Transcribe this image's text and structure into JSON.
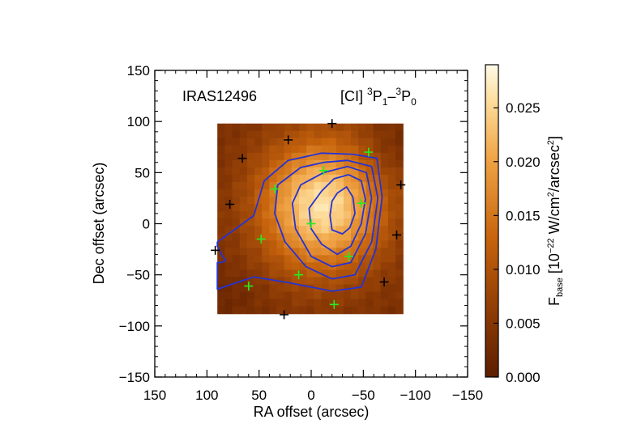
{
  "chart_data": {
    "type": "heatmap",
    "title": "",
    "object_label": "IRAS12496",
    "line_label": {
      "base": "[CI] ",
      "sup1": "3",
      "mid1": "P",
      "sub1": "1",
      "dash": "–",
      "sup2": "3",
      "mid2": "P",
      "sub2": "0"
    },
    "xlabel": "RA offset (arcsec)",
    "ylabel": "Dec offset (arcsec)",
    "xlim": [
      150,
      -150
    ],
    "ylim": [
      -150,
      150
    ],
    "x_ticks": [
      150,
      100,
      50,
      0,
      -50,
      -100,
      -150
    ],
    "x_tick_labels": [
      "150",
      "100",
      "50",
      "0",
      "−50",
      "−100",
      "−150"
    ],
    "y_ticks": [
      150,
      100,
      50,
      0,
      -50,
      -100,
      -150
    ],
    "y_tick_labels": [
      "150",
      "100",
      "50",
      "0",
      "−50",
      "−100",
      "−150"
    ],
    "image_extent": {
      "x": [
        90,
        -88
      ],
      "y": [
        -88,
        98
      ]
    },
    "image_grid": {
      "nx": 25,
      "ny": 26
    },
    "peak": {
      "x": -10,
      "y": 18
    },
    "colorbar": {
      "label_main": "F",
      "label_sub": "base",
      "label_rest_a": " [10",
      "label_sup_a": "−22",
      "label_rest_b": " W/cm",
      "label_sup_b": "2",
      "label_rest_c": "/arcsec",
      "label_sup_c": "2",
      "label_end": "]",
      "range": [
        0.0,
        0.029
      ],
      "ticks": [
        0.0,
        0.005,
        0.01,
        0.015,
        0.02,
        0.025
      ],
      "tick_labels": [
        "0.000",
        "0.005",
        "0.010",
        "0.015",
        "0.020",
        "0.025"
      ]
    },
    "contours": [
      {
        "level": 1,
        "points": [
          [
            -25,
            30
          ],
          [
            -34,
            36
          ],
          [
            -40,
            26
          ],
          [
            -42,
            10
          ],
          [
            -37,
            -4
          ],
          [
            -30,
            -10
          ],
          [
            -20,
            -6
          ],
          [
            -18,
            8
          ],
          [
            -20,
            22
          ],
          [
            -25,
            30
          ]
        ]
      },
      {
        "level": 2,
        "points": [
          [
            -36,
            48
          ],
          [
            -48,
            42
          ],
          [
            -52,
            24
          ],
          [
            -48,
            0
          ],
          [
            -38,
            -22
          ],
          [
            -25,
            -30
          ],
          [
            -10,
            -20
          ],
          [
            0,
            -5
          ],
          [
            2,
            15
          ],
          [
            -10,
            32
          ],
          [
            -22,
            44
          ],
          [
            -36,
            48
          ]
        ]
      },
      {
        "level": 3,
        "points": [
          [
            -35,
            56
          ],
          [
            -53,
            50
          ],
          [
            -58,
            25
          ],
          [
            -52,
            -10
          ],
          [
            -38,
            -38
          ],
          [
            -20,
            -42
          ],
          [
            0,
            -32
          ],
          [
            15,
            -5
          ],
          [
            18,
            20
          ],
          [
            10,
            38
          ],
          [
            -12,
            50
          ],
          [
            -35,
            56
          ]
        ]
      },
      {
        "level": 4,
        "points": [
          [
            -35,
            62
          ],
          [
            -58,
            56
          ],
          [
            -64,
            25
          ],
          [
            -58,
            -18
          ],
          [
            -42,
            -50
          ],
          [
            -20,
            -54
          ],
          [
            5,
            -42
          ],
          [
            25,
            -18
          ],
          [
            35,
            10
          ],
          [
            32,
            38
          ],
          [
            10,
            55
          ],
          [
            -12,
            60
          ],
          [
            -35,
            62
          ]
        ]
      },
      {
        "level": 5,
        "points": [
          [
            -40,
            68
          ],
          [
            -63,
            64
          ],
          [
            -68,
            26
          ],
          [
            -62,
            -25
          ],
          [
            -48,
            -62
          ],
          [
            -20,
            -66
          ],
          [
            20,
            -58
          ],
          [
            55,
            -52
          ],
          [
            90,
            -64
          ],
          [
            90,
            -38
          ],
          [
            86,
            -38
          ],
          [
            82,
            -36
          ],
          [
            86,
            -30
          ],
          [
            90,
            -22
          ],
          [
            90,
            -18
          ],
          [
            55,
            8
          ],
          [
            45,
            42
          ],
          [
            22,
            62
          ],
          [
            -10,
            69
          ],
          [
            -40,
            68
          ]
        ]
      }
    ],
    "green_markers": [
      {
        "x": -55,
        "y": 70
      },
      {
        "x": -12,
        "y": 52
      },
      {
        "x": 35,
        "y": 34
      },
      {
        "x": -48,
        "y": 20
      },
      {
        "x": 0,
        "y": 0
      },
      {
        "x": 48,
        "y": -15
      },
      {
        "x": -36,
        "y": -32
      },
      {
        "x": 12,
        "y": -50
      },
      {
        "x": 60,
        "y": -61
      },
      {
        "x": -22,
        "y": -79
      }
    ],
    "black_markers": [
      {
        "x": -20,
        "y": 98
      },
      {
        "x": 22,
        "y": 82
      },
      {
        "x": 66,
        "y": 64
      },
      {
        "x": 78,
        "y": 19
      },
      {
        "x": -86,
        "y": 38
      },
      {
        "x": -82,
        "y": -11
      },
      {
        "x": -70,
        "y": -57
      },
      {
        "x": 92,
        "y": -26
      },
      {
        "x": 26,
        "y": -89
      }
    ]
  }
}
